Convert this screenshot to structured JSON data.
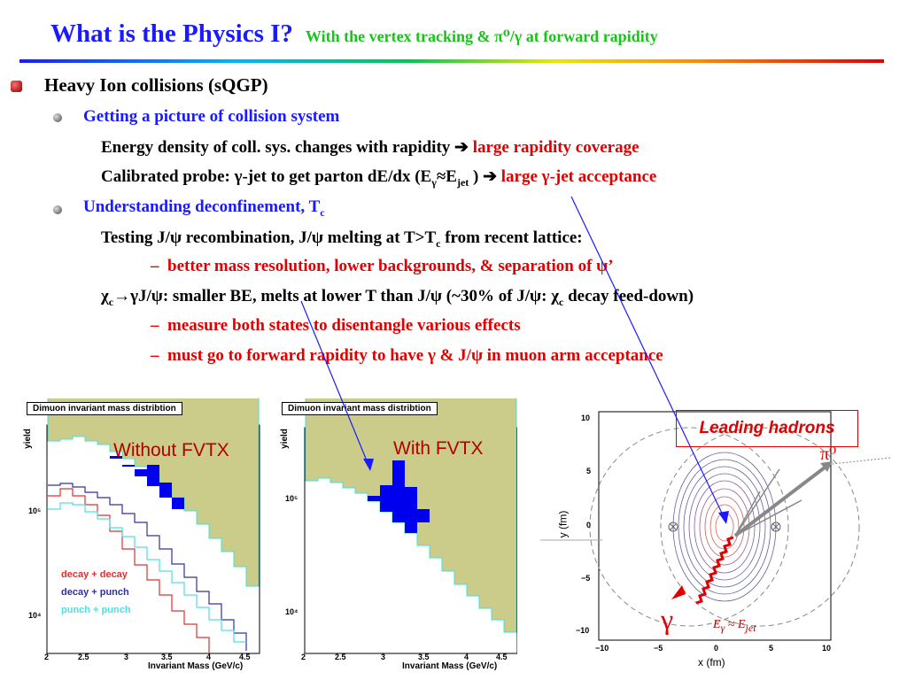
{
  "title": {
    "main": "What is the Physics I?",
    "sub": "With the vertex tracking & π⁰/γ at forward rapidity"
  },
  "bullets": {
    "l1": "Heavy Ion collisions (sQGP)",
    "s1": "Getting a picture of collision system",
    "s1a_text": "Energy density of coll. sys. changes with rapidity",
    "s1a_arrow": "➔",
    "s1a_red": "large rapidity coverage",
    "s1b_pre": "Calibrated probe: γ-jet to get parton dE/dx (E",
    "s1b_sub1": "γ",
    "s1b_mid": "≈E",
    "s1b_sub2": "jet",
    "s1b_post": " )",
    "s1b_arrow": "➔",
    "s1b_red": "large γ-jet acceptance",
    "s2": "Understanding deconfinement, T",
    "s2_sub": "c",
    "s2a_pre": "Testing J/ψ recombination,  J/ψ melting at  T>T",
    "s2a_sub": "c",
    "s2a_post": " from recent lattice:",
    "dash": "–",
    "s2b": "better mass resolution, lower backgrounds, & separation of ψ’",
    "s2c_chi": "χ",
    "s2c_sub": "c",
    "s2c_arrow": "→",
    "s2c_text": "γJ/ψ: smaller BE, melts at lower T than J/ψ (~30% of J/ψ: χ",
    "s2c_sub2": "c",
    "s2c_post": " decay feed-down)",
    "s2d": "measure both states to disentangle various effects",
    "s2e": "must go to forward rapidity to have γ & J/ψ in muon arm acceptance"
  },
  "plots": {
    "left": {
      "header": "Dimuon invariant mass distribtion",
      "label": "Without FVTX",
      "ylabel": "yield",
      "xlabel": "Invariant Mass (GeV/c)",
      "yticks": [
        "10⁵",
        "10⁴"
      ],
      "xticks": [
        "2",
        "2.5",
        "3",
        "3.5",
        "4",
        "4.5"
      ],
      "legend": [
        "decay + decay",
        "decay + punch",
        "punch + punch"
      ]
    },
    "right": {
      "header": "Dimuon invariant mass distribtion",
      "label": "With FVTX",
      "ylabel": "yield",
      "xlabel": "Invariant Mass (GeV/c)",
      "yticks": [
        "10⁵",
        "10⁴"
      ],
      "xticks": [
        "2",
        "2.5",
        "3",
        "3.5",
        "4",
        "4.5"
      ]
    },
    "collision": {
      "badge": "Leading hadrons",
      "pi0": "π⁰",
      "gamma": "γ",
      "ejet": "E",
      "ejet_sub1": "γ",
      "ejet_approx": " ≈ E",
      "ejet_sub2": "jet",
      "xlabel": "x (fm)",
      "ylabel": "y (fm)",
      "xticks": [
        "−10",
        "−5",
        "0",
        "5",
        "10"
      ],
      "yticks": [
        "10",
        "5",
        "0",
        "−5",
        "−10"
      ]
    }
  },
  "colors": {
    "title": "#1a1aff",
    "subtitle": "#19c419",
    "accent_red": "#e00000",
    "fill": "#cccc8a",
    "peak": "#0000ee"
  }
}
